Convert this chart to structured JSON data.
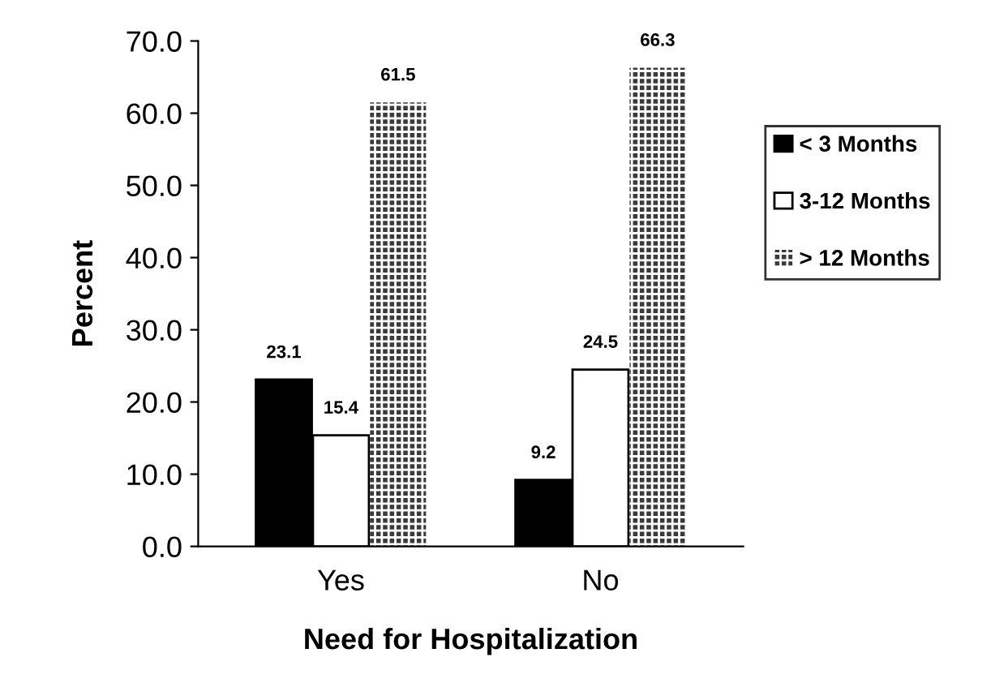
{
  "chart_data": {
    "type": "bar",
    "xlabel": "Need for Hospitalization",
    "ylabel": "Percent",
    "categories": [
      "Yes",
      "No"
    ],
    "series": [
      {
        "name": "< 3 Months",
        "color": "#000000",
        "values": [
          23.1,
          9.2
        ]
      },
      {
        "name": "3-12 Months",
        "color": "#ffffff",
        "values": [
          15.4,
          24.5
        ]
      },
      {
        "name": "> 12 Months",
        "color": "#3a3a3a",
        "values": [
          61.5,
          66.3
        ]
      }
    ],
    "ylim": [
      0,
      70
    ],
    "yticks": [
      {
        "value": 0,
        "label": "0.0"
      },
      {
        "value": 10,
        "label": "10.0"
      },
      {
        "value": 20,
        "label": "20.0"
      },
      {
        "value": 30,
        "label": "30.0"
      },
      {
        "value": 40,
        "label": "40.0"
      },
      {
        "value": 50,
        "label": "50.0"
      },
      {
        "value": 60,
        "label": "60.0"
      },
      {
        "value": 70,
        "label": "70.0"
      }
    ],
    "data_labels": true,
    "legend": "right",
    "grid": false
  }
}
